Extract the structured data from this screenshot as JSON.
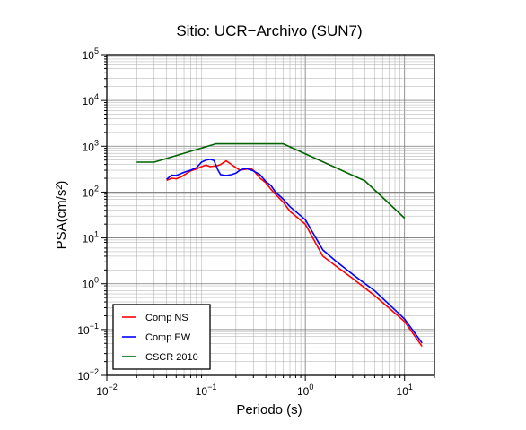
{
  "chart_data": {
    "type": "line",
    "title": "Sitio: UCR−Archivo (SUN7)",
    "xlabel": "Periodo (s)",
    "ylabel": "PSA(cm/s²)",
    "xscale": "log",
    "yscale": "log",
    "xlim": [
      0.01,
      20
    ],
    "ylim": [
      0.01,
      100000
    ],
    "grid": true,
    "legend_position": "bottom-left",
    "x_tick_labels": [
      {
        "base": "10",
        "exp": "−2",
        "value": 0.01
      },
      {
        "base": "10",
        "exp": "−1",
        "value": 0.1
      },
      {
        "base": "10",
        "exp": "0",
        "value": 1
      },
      {
        "base": "10",
        "exp": "1",
        "value": 10
      }
    ],
    "y_tick_labels": [
      {
        "base": "10",
        "exp": "−2",
        "value": 0.01
      },
      {
        "base": "10",
        "exp": "−1",
        "value": 0.1
      },
      {
        "base": "10",
        "exp": "0",
        "value": 1
      },
      {
        "base": "10",
        "exp": "1",
        "value": 10
      },
      {
        "base": "10",
        "exp": "2",
        "value": 100
      },
      {
        "base": "10",
        "exp": "3",
        "value": 1000
      },
      {
        "base": "10",
        "exp": "4",
        "value": 10000
      },
      {
        "base": "10",
        "exp": "5",
        "value": 100000
      }
    ],
    "series": [
      {
        "name": "Comp NS",
        "color": "#ff0000",
        "points": [
          [
            0.04,
            180
          ],
          [
            0.045,
            200
          ],
          [
            0.05,
            195
          ],
          [
            0.055,
            210
          ],
          [
            0.06,
            235
          ],
          [
            0.07,
            290
          ],
          [
            0.08,
            320
          ],
          [
            0.09,
            360
          ],
          [
            0.1,
            390
          ],
          [
            0.11,
            360
          ],
          [
            0.12,
            370
          ],
          [
            0.13,
            375
          ],
          [
            0.14,
            400
          ],
          [
            0.16,
            480
          ],
          [
            0.18,
            400
          ],
          [
            0.2,
            340
          ],
          [
            0.22,
            300
          ],
          [
            0.25,
            315
          ],
          [
            0.28,
            330
          ],
          [
            0.3,
            300
          ],
          [
            0.35,
            200
          ],
          [
            0.4,
            160
          ],
          [
            0.45,
            115
          ],
          [
            0.5,
            90
          ],
          [
            0.6,
            60
          ],
          [
            0.7,
            38
          ],
          [
            1.0,
            20
          ],
          [
            1.5,
            4.0
          ],
          [
            2.0,
            2.5
          ],
          [
            3.0,
            1.3
          ],
          [
            5.0,
            0.55
          ],
          [
            10.0,
            0.15
          ],
          [
            15.0,
            0.043
          ]
        ]
      },
      {
        "name": "Comp EW",
        "color": "#0000ff",
        "points": [
          [
            0.04,
            190
          ],
          [
            0.045,
            235
          ],
          [
            0.05,
            230
          ],
          [
            0.06,
            270
          ],
          [
            0.07,
            300
          ],
          [
            0.08,
            340
          ],
          [
            0.09,
            450
          ],
          [
            0.1,
            500
          ],
          [
            0.11,
            520
          ],
          [
            0.12,
            490
          ],
          [
            0.13,
            320
          ],
          [
            0.14,
            240
          ],
          [
            0.16,
            230
          ],
          [
            0.18,
            240
          ],
          [
            0.2,
            260
          ],
          [
            0.22,
            300
          ],
          [
            0.25,
            330
          ],
          [
            0.3,
            290
          ],
          [
            0.35,
            240
          ],
          [
            0.4,
            170
          ],
          [
            0.45,
            140
          ],
          [
            0.5,
            100
          ],
          [
            0.6,
            70
          ],
          [
            0.7,
            48
          ],
          [
            1.0,
            25
          ],
          [
            1.5,
            5.5
          ],
          [
            2.0,
            3.2
          ],
          [
            3.0,
            1.6
          ],
          [
            5.0,
            0.7
          ],
          [
            10.0,
            0.17
          ],
          [
            15.0,
            0.051
          ]
        ]
      },
      {
        "name": "CSCR 2010",
        "color": "#006400",
        "points": [
          [
            0.02,
            450
          ],
          [
            0.03,
            450
          ],
          [
            0.125,
            1130
          ],
          [
            0.6,
            1130
          ],
          [
            4.0,
            175
          ],
          [
            10.0,
            27
          ]
        ]
      }
    ]
  }
}
